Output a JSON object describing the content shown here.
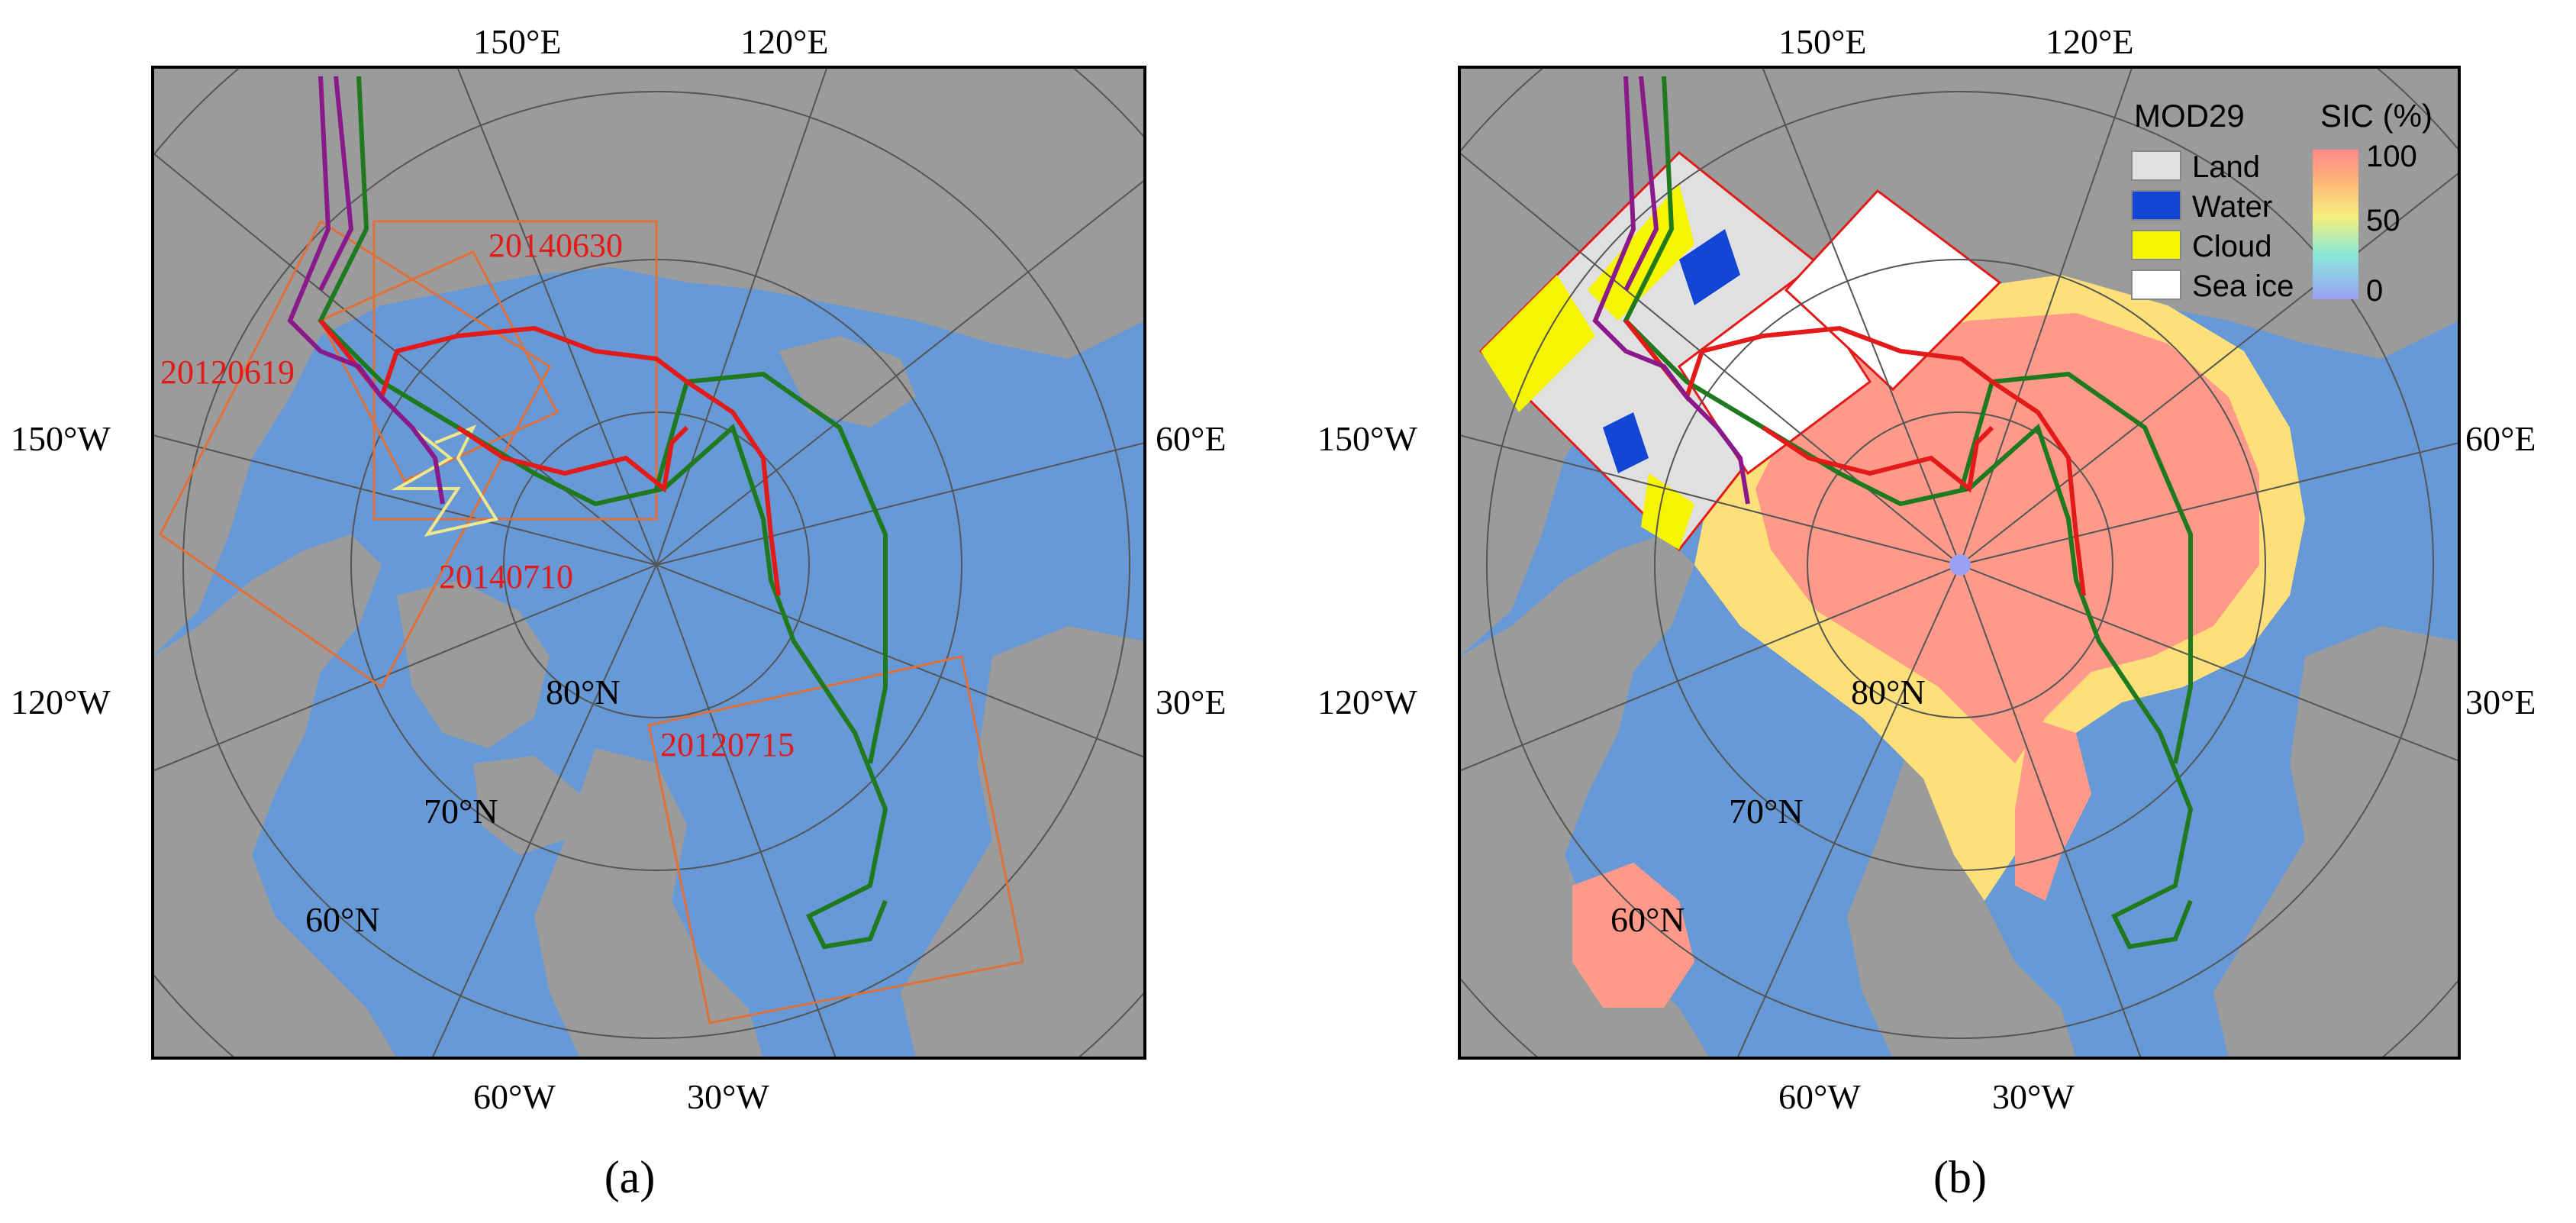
{
  "panel_a": {
    "caption": "(a)",
    "lon_labels": {
      "top_left": "150°E",
      "top_right": "120°E",
      "left_upper": "150°W",
      "left_lower": "120°W",
      "right_upper": "60°E",
      "right_lower": "30°E",
      "bottom_left": "60°W",
      "bottom_right": "30°W"
    },
    "lat_labels": {
      "lat80": "80°N",
      "lat70": "70°N",
      "lat60": "60°N"
    },
    "date_labels": {
      "d20140630": "20140630",
      "d20120619": "20120619",
      "d20140710": "20140710",
      "d20120715": "20120715"
    }
  },
  "panel_b": {
    "caption": "(b)",
    "lon_labels": {
      "top_left": "150°E",
      "top_right": "120°E",
      "left_upper": "150°W",
      "left_lower": "120°W",
      "right_upper": "60°E",
      "right_lower": "30°E",
      "bottom_left": "60°W",
      "bottom_right": "30°W"
    },
    "lat_labels": {
      "lat80": "80°N",
      "lat70": "70°N",
      "lat60": "60°N"
    },
    "legend": {
      "mod29_title": "MOD29",
      "items": [
        {
          "label": "Land",
          "color": "#e0e0e0"
        },
        {
          "label": "Water",
          "color": "#1446d6"
        },
        {
          "label": "Cloud",
          "color": "#f5f500"
        },
        {
          "label": "Sea ice",
          "color": "#ffffff"
        }
      ],
      "sic_title": "SIC (%)",
      "sic_ticks": [
        "100",
        "50",
        "0"
      ]
    }
  },
  "colors": {
    "land": "#9b9b9b",
    "water": "#6699d6",
    "track_red": "#e21a1a",
    "track_green": "#1f7a1f",
    "track_purple": "#8a1a8a",
    "track_yellow": "#f0e68c",
    "swath_box": "#e0703a",
    "sic_high": "#ff9a8a"
  }
}
